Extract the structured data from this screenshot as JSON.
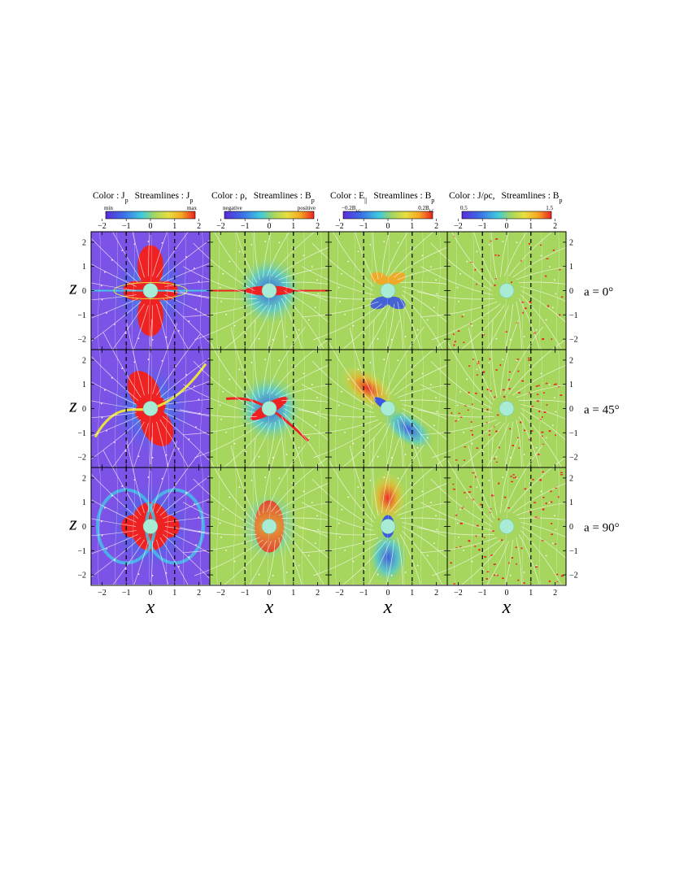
{
  "figure": {
    "column_titles": [
      {
        "color_label": "Color : J",
        "color_sub": "p",
        "stream_label": "Streamlines : J",
        "stream_sub": "p",
        "cbar_left": "min",
        "cbar_right": "max",
        "cmap": "rainbow"
      },
      {
        "color_label": "Color : ρ,",
        "color_sub": "",
        "stream_label": "Streamlines : B",
        "stream_sub": "p",
        "cbar_left": "negative",
        "cbar_right": "positive",
        "cmap": "rainbow"
      },
      {
        "color_label": "Color : E",
        "color_sub": "||",
        "stream_label": "Streamlines : B",
        "stream_sub": "p",
        "cbar_left": "−0.2B",
        "cbar_left_sub": "LC",
        "cbar_right": "0.2B",
        "cbar_right_sub": "LC",
        "cmap": "rainbow"
      },
      {
        "color_label": "Color : J/ρc,",
        "color_sub": "",
        "stream_label": "Streamlines : B",
        "stream_sub": "p",
        "cbar_left": "0.5",
        "cbar_right": "1.5",
        "cmap": "rainbow"
      }
    ],
    "tick_values": [
      "−2",
      "−1",
      "0",
      "1",
      "2"
    ],
    "x_axis_label": "x",
    "z_axis_label": "z",
    "row_labels": [
      "a = 0°",
      "a = 45°",
      "a = 90°"
    ],
    "colors": {
      "bg_purple": "#7d52e6",
      "bg_green": "#a6d65e",
      "red": "#ee2222",
      "orange": "#f6a623",
      "yellow": "#e8e040",
      "cyan": "#41c6e8",
      "blue": "#3b56e0",
      "star": "#a8ecd6"
    }
  }
}
